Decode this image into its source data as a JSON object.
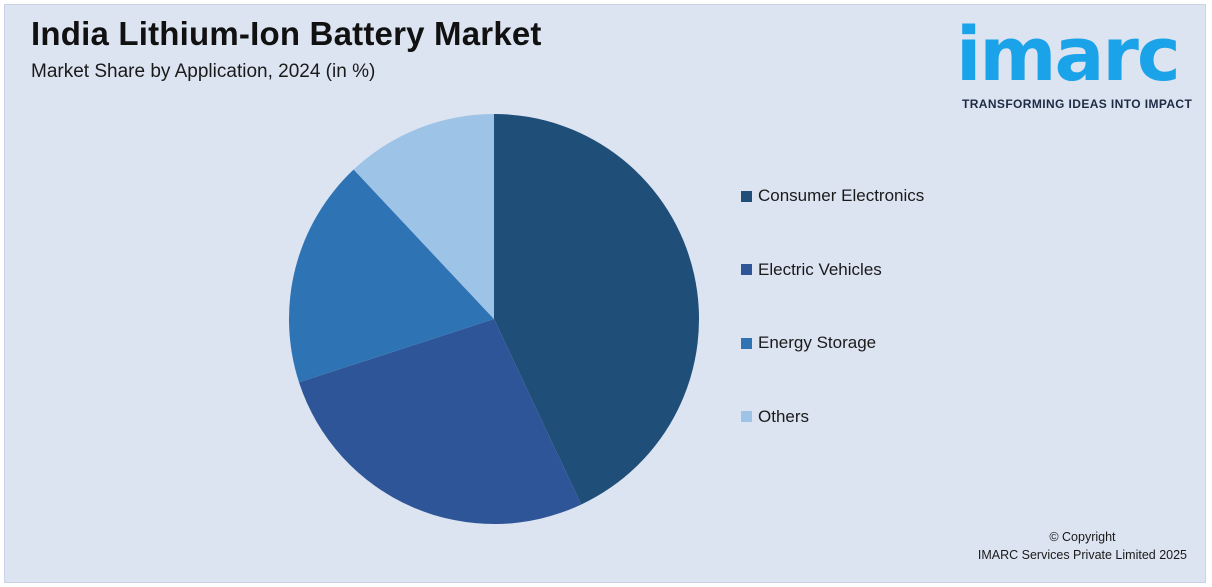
{
  "header": {
    "title": "India Lithium-Ion Battery Market",
    "subtitle": "Market Share by Application, 2024 (in %)"
  },
  "logo": {
    "wordmark": "imarc",
    "tagline": "TRANSFORMING IDEAS INTO IMPACT",
    "color": "#1aa3e8"
  },
  "footer": {
    "copyright_line1": "© Copyright",
    "copyright_line2": "IMARC Services Private Limited 2025"
  },
  "chart_data": {
    "type": "pie",
    "title": "India Lithium-Ion Battery Market",
    "subtitle": "Market Share by Application, 2024 (in %)",
    "legend_position": "right",
    "categories": [
      "Consumer Electronics",
      "Electric Vehicles",
      "Energy Storage",
      "Others"
    ],
    "values": [
      43,
      27,
      18,
      12
    ],
    "colors": [
      "#1f4e79",
      "#2e5597",
      "#2e74b5",
      "#9dc3e6"
    ]
  }
}
